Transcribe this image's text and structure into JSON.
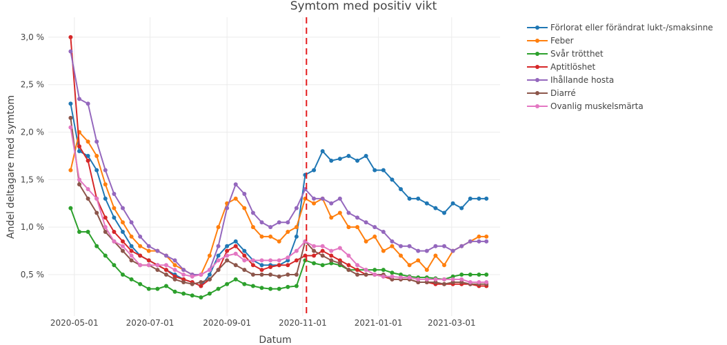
{
  "chart_data": {
    "type": "line",
    "title": "Symtom med positiv vikt",
    "xlabel": "Datum",
    "ylabel": "Andel deltagare med symtom",
    "x_ticks": [
      "2020-05-01",
      "2020-07-01",
      "2020-09-01",
      "2020-11-01",
      "2021-01-01",
      "2021-03-01"
    ],
    "y_ticks": [
      0.5,
      1.0,
      1.5,
      2.0,
      2.5,
      3.0
    ],
    "y_tick_labels": [
      "0,5 %",
      "1,0 %",
      "1,5 %",
      "2,0 %",
      "2,5 %",
      "3,0 %"
    ],
    "ylim": [
      0.064,
      3.21
    ],
    "xlim": [
      "2020-04-10",
      "2021-04-09"
    ],
    "grid": true,
    "legend_position": "right",
    "vline": {
      "x": "2020-11-04",
      "color": "#e41a1c",
      "style": "dashed"
    },
    "x": [
      "2020-04-28",
      "2020-05-05",
      "2020-05-12",
      "2020-05-19",
      "2020-05-26",
      "2020-06-02",
      "2020-06-09",
      "2020-06-16",
      "2020-06-23",
      "2020-06-30",
      "2020-07-07",
      "2020-07-14",
      "2020-07-21",
      "2020-07-28",
      "2020-08-04",
      "2020-08-11",
      "2020-08-18",
      "2020-08-25",
      "2020-09-01",
      "2020-09-08",
      "2020-09-15",
      "2020-09-22",
      "2020-09-29",
      "2020-10-06",
      "2020-10-13",
      "2020-10-20",
      "2020-10-27",
      "2020-11-03",
      "2020-11-10",
      "2020-11-17",
      "2020-11-24",
      "2020-12-01",
      "2020-12-08",
      "2020-12-15",
      "2020-12-22",
      "2020-12-29",
      "2021-01-05",
      "2021-01-12",
      "2021-01-19",
      "2021-01-26",
      "2021-02-02",
      "2021-02-09",
      "2021-02-16",
      "2021-02-23",
      "2021-03-02",
      "2021-03-09",
      "2021-03-16",
      "2021-03-23",
      "2021-03-29"
    ],
    "series": [
      {
        "name": "Förlorat eller förändrat lukt-/smaksinne",
        "color": "#1f77b4",
        "values": [
          2.3,
          1.8,
          1.75,
          1.6,
          1.3,
          1.1,
          0.95,
          0.8,
          0.7,
          0.65,
          0.6,
          0.55,
          0.5,
          0.45,
          0.42,
          0.38,
          0.5,
          0.7,
          0.8,
          0.85,
          0.75,
          0.65,
          0.6,
          0.6,
          0.6,
          0.65,
          0.9,
          1.55,
          1.6,
          1.8,
          1.7,
          1.72,
          1.75,
          1.7,
          1.75,
          1.6,
          1.6,
          1.5,
          1.4,
          1.3,
          1.3,
          1.25,
          1.2,
          1.15,
          1.25,
          1.2,
          1.3,
          1.3,
          1.3
        ]
      },
      {
        "name": "Feber",
        "color": "#ff7f0e",
        "values": [
          1.6,
          2.0,
          1.9,
          1.75,
          1.45,
          1.2,
          1.05,
          0.9,
          0.8,
          0.75,
          0.75,
          0.7,
          0.6,
          0.55,
          0.5,
          0.5,
          0.7,
          1.0,
          1.25,
          1.3,
          1.2,
          1.0,
          0.9,
          0.9,
          0.85,
          0.95,
          1.0,
          1.3,
          1.25,
          1.3,
          1.1,
          1.15,
          1.0,
          1.0,
          0.85,
          0.9,
          0.75,
          0.8,
          0.7,
          0.6,
          0.65,
          0.55,
          0.7,
          0.6,
          0.75,
          0.8,
          0.85,
          0.9,
          0.9
        ]
      },
      {
        "name": "Svår trötthet",
        "color": "#2ca02c",
        "values": [
          1.2,
          0.95,
          0.95,
          0.8,
          0.7,
          0.6,
          0.5,
          0.45,
          0.4,
          0.35,
          0.35,
          0.38,
          0.32,
          0.3,
          0.28,
          0.26,
          0.3,
          0.35,
          0.4,
          0.45,
          0.4,
          0.38,
          0.36,
          0.35,
          0.35,
          0.37,
          0.38,
          0.65,
          0.62,
          0.6,
          0.62,
          0.6,
          0.55,
          0.55,
          0.55,
          0.55,
          0.55,
          0.52,
          0.5,
          0.48,
          0.47,
          0.47,
          0.46,
          0.45,
          0.48,
          0.5,
          0.5,
          0.5,
          0.5
        ]
      },
      {
        "name": "Aptitlöshet",
        "color": "#d62728",
        "values": [
          3.0,
          1.85,
          1.7,
          1.3,
          1.1,
          0.95,
          0.85,
          0.75,
          0.7,
          0.65,
          0.6,
          0.55,
          0.48,
          0.45,
          0.42,
          0.38,
          0.45,
          0.55,
          0.75,
          0.8,
          0.7,
          0.6,
          0.55,
          0.58,
          0.6,
          0.6,
          0.65,
          0.7,
          0.7,
          0.75,
          0.7,
          0.65,
          0.6,
          0.55,
          0.5,
          0.5,
          0.48,
          0.45,
          0.45,
          0.45,
          0.42,
          0.42,
          0.4,
          0.4,
          0.4,
          0.4,
          0.4,
          0.38,
          0.38
        ]
      },
      {
        "name": "Ihållande hosta",
        "color": "#9467bd",
        "values": [
          2.85,
          2.35,
          2.3,
          1.9,
          1.6,
          1.35,
          1.2,
          1.05,
          0.9,
          0.8,
          0.75,
          0.7,
          0.65,
          0.55,
          0.5,
          0.5,
          0.55,
          0.8,
          1.2,
          1.45,
          1.35,
          1.15,
          1.05,
          1.0,
          1.05,
          1.05,
          1.2,
          1.4,
          1.3,
          1.3,
          1.25,
          1.3,
          1.15,
          1.1,
          1.05,
          1.0,
          0.95,
          0.85,
          0.8,
          0.8,
          0.75,
          0.75,
          0.8,
          0.8,
          0.75,
          0.8,
          0.85,
          0.85,
          0.85
        ]
      },
      {
        "name": "Diarré",
        "color": "#8c564b",
        "values": [
          2.15,
          1.45,
          1.3,
          1.15,
          0.95,
          0.85,
          0.75,
          0.65,
          0.6,
          0.6,
          0.55,
          0.5,
          0.45,
          0.42,
          0.4,
          0.42,
          0.45,
          0.55,
          0.65,
          0.6,
          0.55,
          0.5,
          0.5,
          0.5,
          0.48,
          0.5,
          0.5,
          0.85,
          0.75,
          0.7,
          0.65,
          0.62,
          0.55,
          0.5,
          0.5,
          0.5,
          0.5,
          0.45,
          0.45,
          0.45,
          0.42,
          0.42,
          0.42,
          0.4,
          0.42,
          0.42,
          0.4,
          0.4,
          0.4
        ]
      },
      {
        "name": "Ovanlig muskelsmärta",
        "color": "#e377c2",
        "values": [
          2.05,
          1.5,
          1.4,
          1.3,
          1.0,
          0.85,
          0.8,
          0.7,
          0.6,
          0.6,
          0.6,
          0.6,
          0.55,
          0.5,
          0.48,
          0.5,
          0.55,
          0.65,
          0.7,
          0.72,
          0.65,
          0.65,
          0.65,
          0.65,
          0.65,
          0.68,
          0.75,
          0.85,
          0.8,
          0.8,
          0.75,
          0.78,
          0.7,
          0.6,
          0.55,
          0.5,
          0.48,
          0.48,
          0.47,
          0.47,
          0.45,
          0.45,
          0.45,
          0.45,
          0.45,
          0.45,
          0.42,
          0.42,
          0.42
        ]
      }
    ]
  }
}
